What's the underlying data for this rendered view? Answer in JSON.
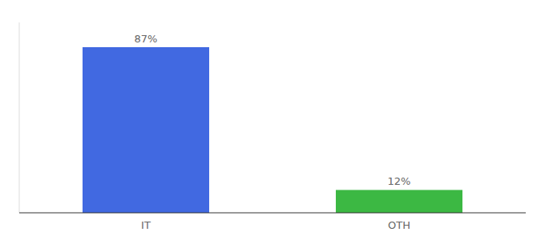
{
  "chart_data": {
    "type": "bar",
    "categories": [
      "IT",
      "OTH"
    ],
    "values": [
      87,
      12
    ],
    "value_labels": [
      "87%",
      "12%"
    ],
    "colors": [
      "#4169e1",
      "#3cb843"
    ],
    "ylim": [
      0,
      100
    ],
    "data_labels": true,
    "tick_labels": "x",
    "grid": false
  }
}
